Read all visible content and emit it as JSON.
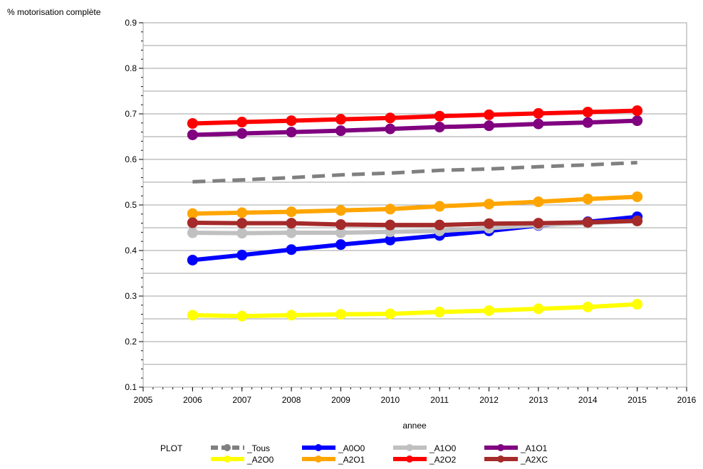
{
  "chart_data": {
    "type": "line",
    "xlabel": "annee",
    "ylabel": "% motorisation complète",
    "xlim": [
      2005,
      2016
    ],
    "ylim": [
      0.1,
      0.9
    ],
    "x_ticks": [
      "2005",
      "2006",
      "2007",
      "2008",
      "2009",
      "2010",
      "2011",
      "2012",
      "2013",
      "2014",
      "2015",
      "2016"
    ],
    "y_ticks": [
      "0.1",
      "0.2",
      "0.3",
      "0.4",
      "0.5",
      "0.6",
      "0.7",
      "0.8",
      "0.9"
    ],
    "grid": "horizontal",
    "legend_title": "PLOT",
    "legend_position": "bottom",
    "x": [
      2006,
      2007,
      2008,
      2009,
      2010,
      2011,
      2012,
      2013,
      2014,
      2015
    ],
    "series": [
      {
        "name": "_Tous",
        "color": "#808080",
        "dashed": true,
        "markers": false,
        "values": [
          0.551,
          0.555,
          0.56,
          0.566,
          0.57,
          0.576,
          0.579,
          0.584,
          0.588,
          0.593
        ]
      },
      {
        "name": "_A0O0",
        "color": "#0000ff",
        "dashed": false,
        "markers": true,
        "values": [
          0.379,
          0.39,
          0.402,
          0.413,
          0.423,
          0.433,
          0.443,
          0.455,
          0.463,
          0.474
        ]
      },
      {
        "name": "_A1O0",
        "color": "#c0c0c0",
        "dashed": false,
        "markers": true,
        "values": [
          0.439,
          0.438,
          0.439,
          0.439,
          0.441,
          0.443,
          0.449,
          0.456,
          0.46,
          0.465
        ]
      },
      {
        "name": "_A1O1",
        "color": "#800080",
        "dashed": false,
        "markers": true,
        "values": [
          0.654,
          0.657,
          0.66,
          0.663,
          0.667,
          0.671,
          0.674,
          0.678,
          0.681,
          0.685
        ]
      },
      {
        "name": "_A2O0",
        "color": "#ffff00",
        "dashed": false,
        "markers": true,
        "values": [
          0.258,
          0.256,
          0.258,
          0.26,
          0.261,
          0.265,
          0.268,
          0.272,
          0.276,
          0.282
        ]
      },
      {
        "name": "_A2O1",
        "color": "#ffa500",
        "dashed": false,
        "markers": true,
        "values": [
          0.481,
          0.483,
          0.485,
          0.488,
          0.491,
          0.497,
          0.502,
          0.507,
          0.513,
          0.518
        ]
      },
      {
        "name": "_A2O2",
        "color": "#ff0000",
        "dashed": false,
        "markers": true,
        "values": [
          0.679,
          0.682,
          0.685,
          0.688,
          0.691,
          0.695,
          0.698,
          0.701,
          0.704,
          0.707
        ]
      },
      {
        "name": "_A2XC",
        "color": "#a52a2a",
        "dashed": false,
        "markers": true,
        "values": [
          0.461,
          0.46,
          0.46,
          0.457,
          0.456,
          0.456,
          0.459,
          0.46,
          0.462,
          0.465
        ]
      }
    ]
  }
}
